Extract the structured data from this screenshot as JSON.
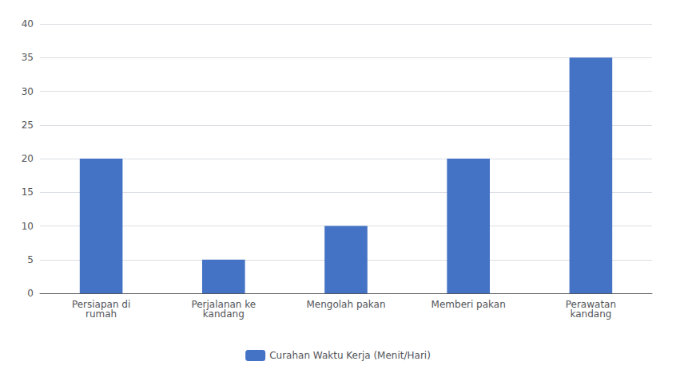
{
  "chart_data": {
    "type": "bar",
    "categories": [
      "Persiapan di\nrumah",
      "Perjalanan ke\nkandang",
      "Mengolah pakan",
      "Memberi pakan",
      "Perawatan\nkandang"
    ],
    "series": [
      {
        "name": "Curahan Waktu Kerja (Menit/Hari)",
        "color": "#4472C4",
        "values": [
          20,
          5,
          10,
          20,
          35
        ]
      }
    ],
    "ylim": [
      0,
      40
    ],
    "yticks": [
      0,
      5,
      10,
      15,
      20,
      25,
      30,
      35,
      40
    ],
    "grid": true,
    "legend": "bottom"
  }
}
